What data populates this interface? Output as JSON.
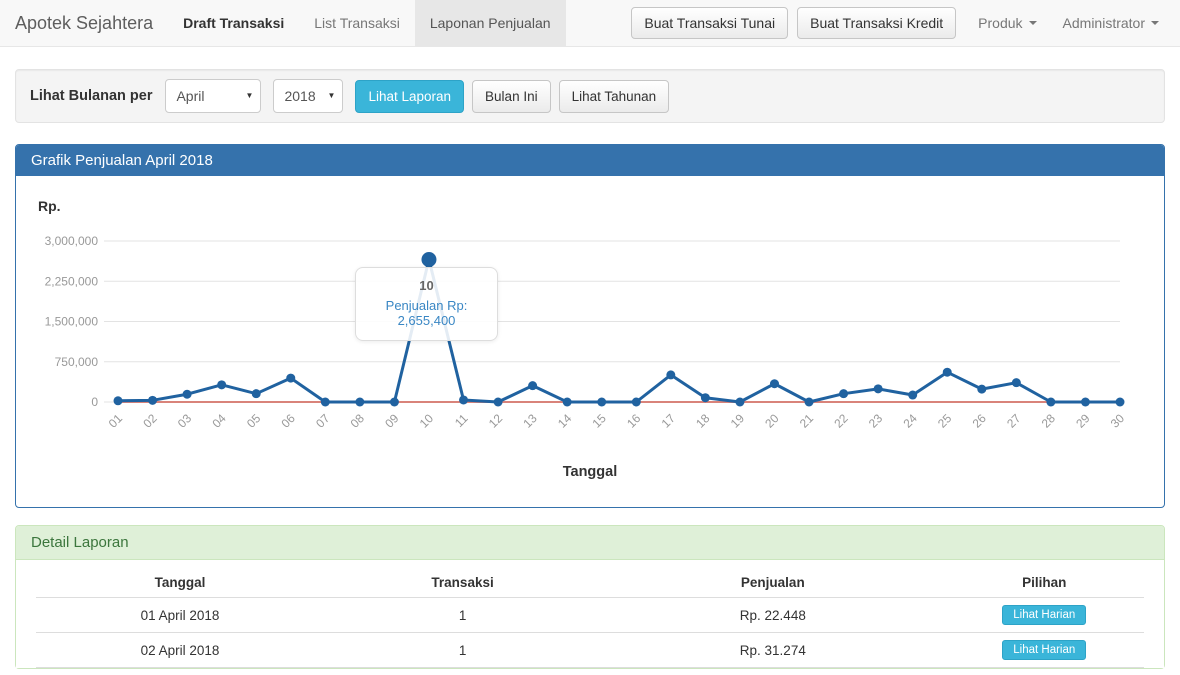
{
  "navbar": {
    "brand": "Apotek Sejahtera",
    "items": [
      {
        "label": "Draft Transaksi"
      },
      {
        "label": "List Transaksi"
      },
      {
        "label": "Laponan Penjualan"
      }
    ],
    "buttons": [
      {
        "label": "Buat Transaksi Tunai"
      },
      {
        "label": "Buat Transaksi Kredit"
      }
    ],
    "dropdowns": [
      {
        "label": "Produk"
      },
      {
        "label": "Administrator"
      }
    ]
  },
  "filter": {
    "label": "Lihat Bulanan per",
    "month_value": "April",
    "year_value": "2018",
    "submit_label": "Lihat Laporan",
    "this_month_label": "Bulan Ini",
    "yearly_label": "Lihat Tahunan"
  },
  "chart_panel": {
    "title": "Grafik Penjualan April 2018",
    "y_axis_label": "Rp.",
    "x_axis_label": "Tanggal",
    "tooltip": {
      "title": "10",
      "text": "Penjualan Rp: 2,655,400"
    }
  },
  "chart_data": {
    "type": "line",
    "title": "Grafik Penjualan April 2018",
    "xlabel": "Tanggal",
    "ylabel": "Rp.",
    "x": [
      "01",
      "02",
      "03",
      "04",
      "05",
      "06",
      "07",
      "08",
      "09",
      "10",
      "11",
      "12",
      "13",
      "14",
      "15",
      "16",
      "17",
      "18",
      "19",
      "20",
      "21",
      "22",
      "23",
      "24",
      "25",
      "26",
      "27",
      "28",
      "29",
      "30"
    ],
    "series": [
      {
        "name": "Penjualan",
        "color": "#2062a0",
        "values": [
          22448,
          31274,
          145000,
          320000,
          155000,
          445000,
          0,
          0,
          0,
          2655400,
          38000,
          0,
          305000,
          0,
          0,
          0,
          505000,
          80000,
          0,
          340000,
          0,
          155000,
          245000,
          130000,
          555000,
          240000,
          360000,
          0,
          0,
          0
        ]
      },
      {
        "name": "zero-baseline",
        "color": "#d9837a",
        "points": false,
        "values": [
          0,
          0,
          0,
          0,
          0,
          0,
          0,
          0,
          0,
          0,
          0,
          0,
          0,
          0,
          0,
          0,
          0,
          0,
          0,
          0,
          0,
          0,
          0,
          0,
          0,
          0,
          0,
          0,
          0,
          0
        ]
      }
    ],
    "ylim": [
      0,
      3000000
    ],
    "yticks": [
      0,
      750000,
      1500000,
      2250000,
      3000000
    ],
    "ytick_labels": [
      "0",
      "750,000",
      "1,500,000",
      "2,250,000",
      "3,000,000"
    ],
    "grid": true,
    "legend": "none",
    "highlight_index": 9,
    "highlight_tooltip": {
      "title": "10",
      "text": "Penjualan Rp: 2,655,400"
    }
  },
  "detail_panel": {
    "title": "Detail Laporan",
    "table": {
      "headers": [
        "Tanggal",
        "Transaksi",
        "Penjualan",
        "Pilihan"
      ],
      "rows": [
        {
          "tanggal": "01 April 2018",
          "transaksi": "1",
          "penjualan": "Rp. 22.448",
          "action": "Lihat Harian"
        },
        {
          "tanggal": "02 April 2018",
          "transaksi": "1",
          "penjualan": "Rp. 31.274",
          "action": "Lihat Harian"
        }
      ]
    }
  },
  "colors": {
    "panel_primary": "#3572ac",
    "accent_teal": "#3ab5d9",
    "line_blue": "#2062a0",
    "baseline_red": "#d9837a",
    "success_bg": "#dff0d8",
    "success_text": "#3c763d",
    "grid": "#e3e3e3",
    "tick_text": "#999999"
  }
}
